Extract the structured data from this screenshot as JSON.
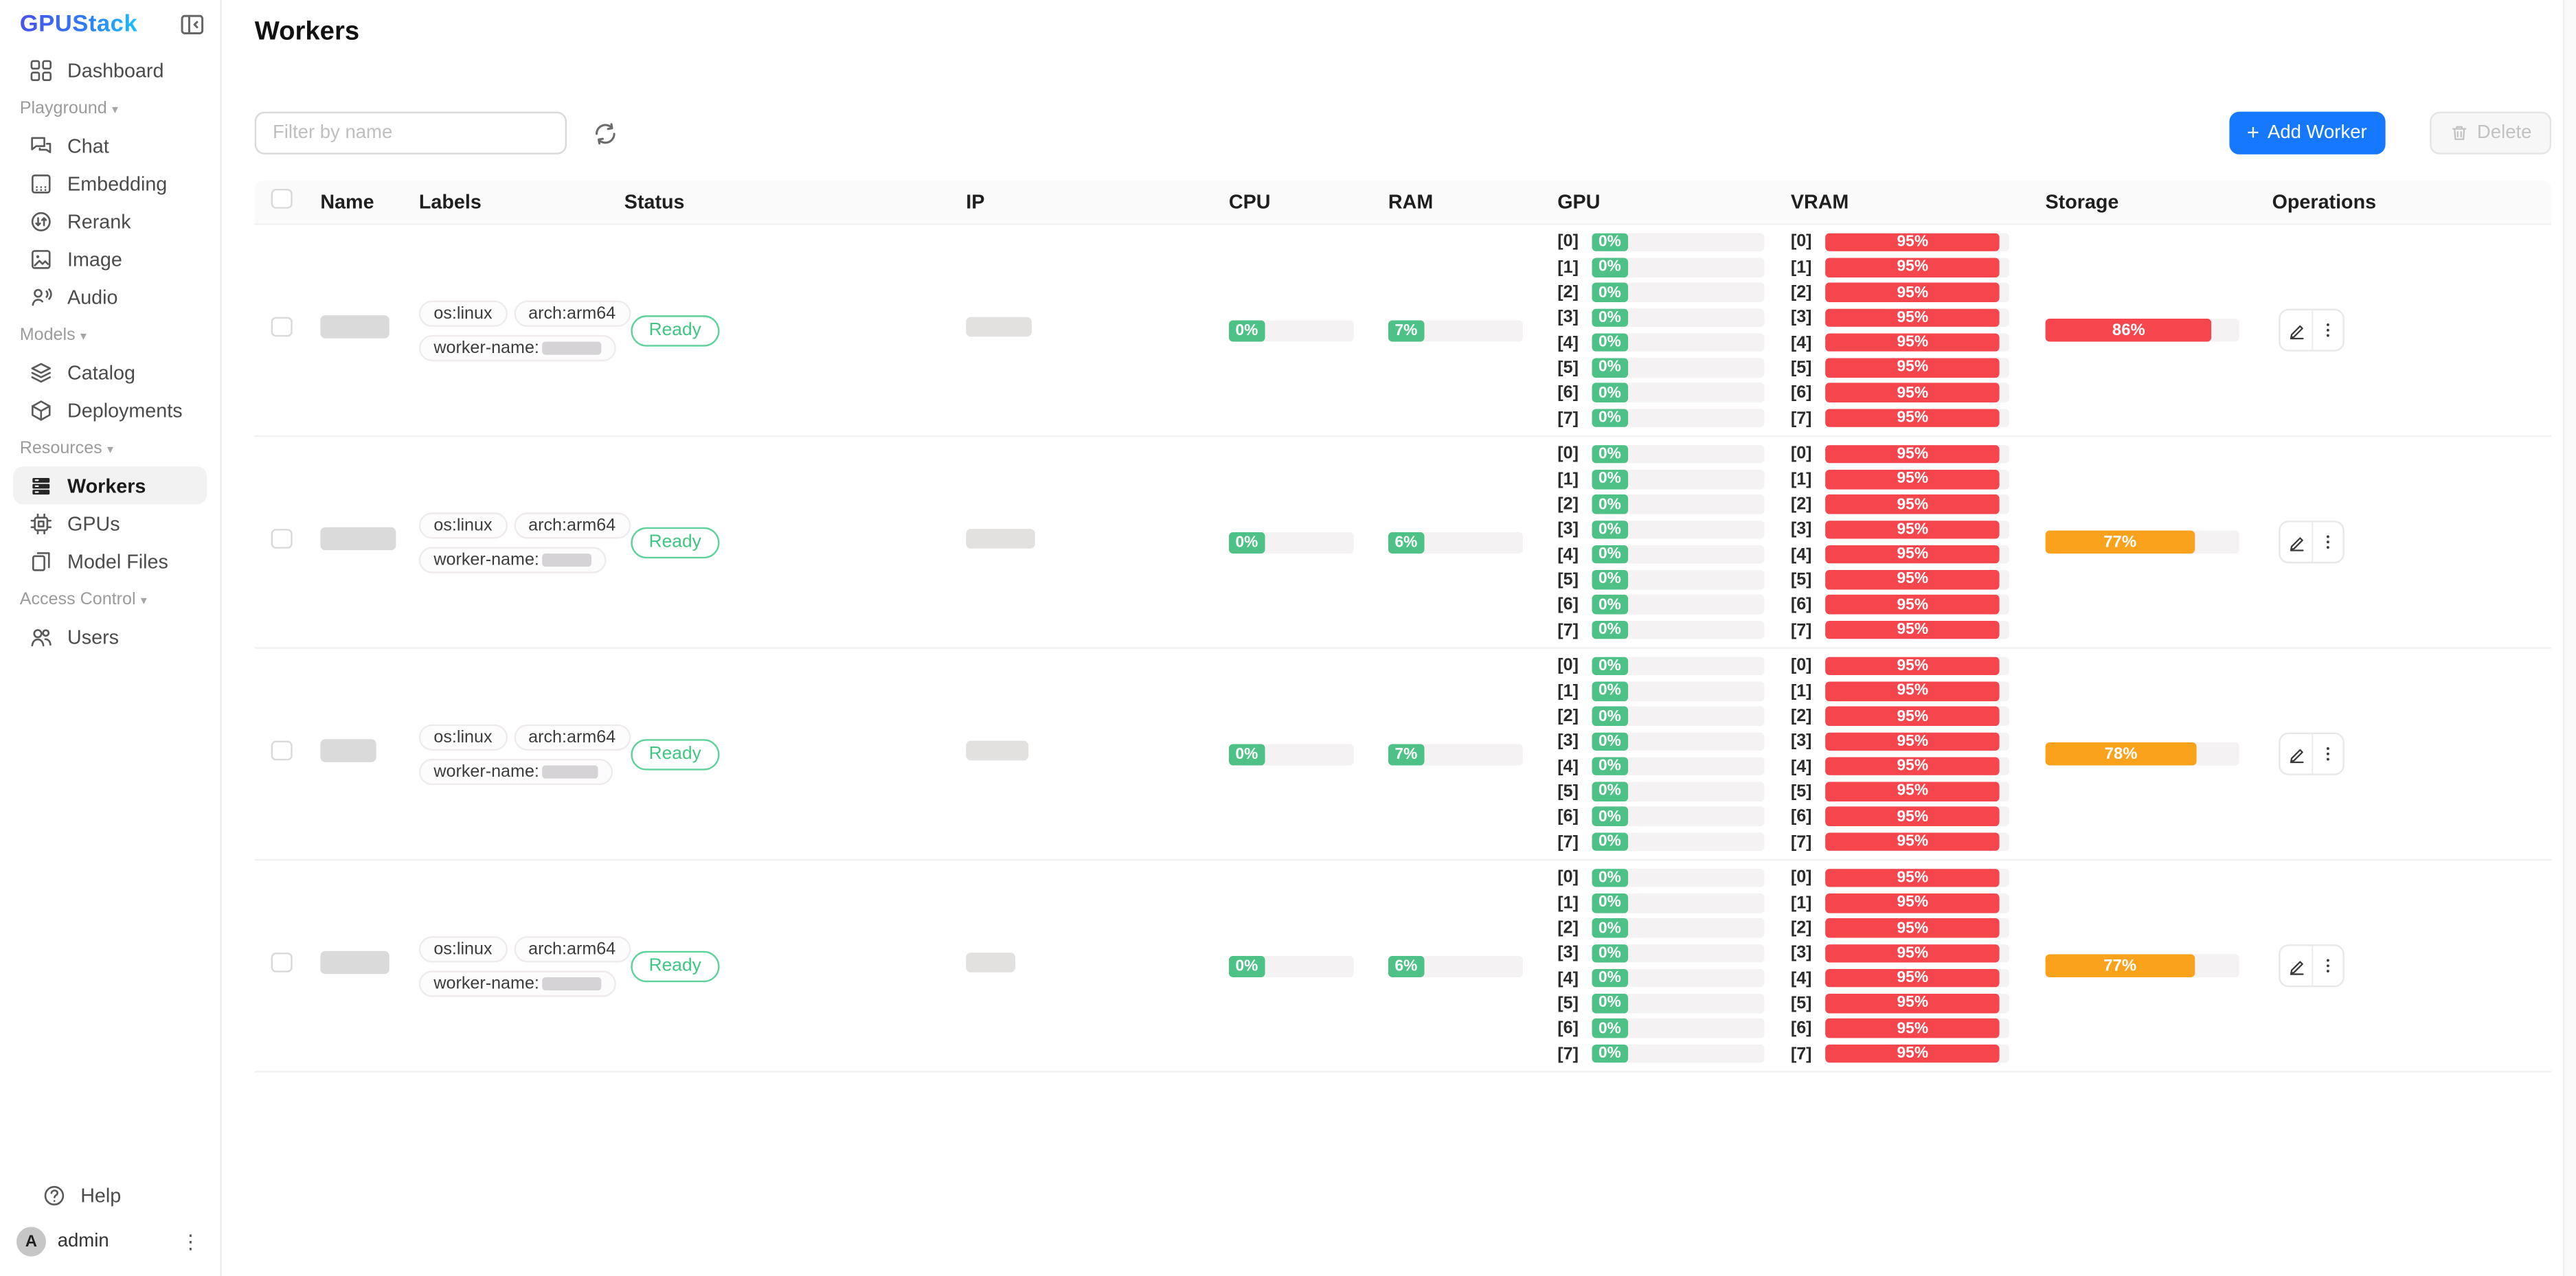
{
  "app": {
    "logo_text": "GPUStack"
  },
  "page": {
    "title": "Workers"
  },
  "sidebar": {
    "sections": [
      {
        "label": "",
        "items": [
          {
            "id": "dashboard",
            "label": "Dashboard",
            "icon": "dashboard-grid-icon",
            "active": false
          }
        ]
      },
      {
        "label": "Playground",
        "items": [
          {
            "id": "chat",
            "label": "Chat",
            "icon": "chat-icon",
            "active": false
          },
          {
            "id": "embedding",
            "label": "Embedding",
            "icon": "embedding-icon",
            "active": false
          },
          {
            "id": "rerank",
            "label": "Rerank",
            "icon": "rerank-icon",
            "active": false
          },
          {
            "id": "image",
            "label": "Image",
            "icon": "image-icon",
            "active": false
          },
          {
            "id": "audio",
            "label": "Audio",
            "icon": "audio-icon",
            "active": false
          }
        ]
      },
      {
        "label": "Models",
        "items": [
          {
            "id": "catalog",
            "label": "Catalog",
            "icon": "catalog-layers-icon",
            "active": false
          },
          {
            "id": "deployments",
            "label": "Deployments",
            "icon": "deployments-box-icon",
            "active": false
          }
        ]
      },
      {
        "label": "Resources",
        "items": [
          {
            "id": "workers",
            "label": "Workers",
            "icon": "workers-server-icon",
            "active": true
          },
          {
            "id": "gpus",
            "label": "GPUs",
            "icon": "gpu-chip-icon",
            "active": false
          },
          {
            "id": "model-files",
            "label": "Model Files",
            "icon": "model-files-icon",
            "active": false
          }
        ]
      },
      {
        "label": "Access Control",
        "items": [
          {
            "id": "users",
            "label": "Users",
            "icon": "users-icon",
            "active": false
          }
        ]
      }
    ],
    "footer": {
      "help_label": "Help",
      "username": "admin",
      "avatar_initial": "A"
    }
  },
  "toolbar": {
    "filter_placeholder": "Filter by name",
    "add_worker_label": "Add Worker",
    "delete_label": "Delete"
  },
  "table": {
    "columns": [
      "Name",
      "Labels",
      "Status",
      "IP",
      "CPU",
      "RAM",
      "GPU",
      "VRAM",
      "Storage",
      "Operations"
    ],
    "gpu_indices": [
      "[0]",
      "[1]",
      "[2]",
      "[3]",
      "[4]",
      "[5]",
      "[6]",
      "[7]"
    ],
    "rows": [
      {
        "labels": [
          "os:linux",
          "arch:arm64"
        ],
        "worker_label_prefix": "worker-name:",
        "status": "Ready",
        "cpu": "0%",
        "ram": "7%",
        "gpu_util": "0%",
        "vram_util": "95%",
        "storage": {
          "label": "86%",
          "pct": 86,
          "level": "critical"
        },
        "redact": {
          "name_w": 42,
          "ip_w": 40,
          "label_w": 36
        }
      },
      {
        "labels": [
          "os:linux",
          "arch:arm64"
        ],
        "worker_label_prefix": "worker-name:",
        "status": "Ready",
        "cpu": "0%",
        "ram": "6%",
        "gpu_util": "0%",
        "vram_util": "95%",
        "storage": {
          "label": "77%",
          "pct": 77,
          "level": "warning"
        },
        "redact": {
          "name_w": 46,
          "ip_w": 42,
          "label_w": 30
        }
      },
      {
        "labels": [
          "os:linux",
          "arch:arm64"
        ],
        "worker_label_prefix": "worker-name:",
        "status": "Ready",
        "cpu": "0%",
        "ram": "7%",
        "gpu_util": "0%",
        "vram_util": "95%",
        "storage": {
          "label": "78%",
          "pct": 78,
          "level": "warning"
        },
        "redact": {
          "name_w": 34,
          "ip_w": 38,
          "label_w": 34
        }
      },
      {
        "labels": [
          "os:linux",
          "arch:arm64"
        ],
        "worker_label_prefix": "worker-name:",
        "status": "Ready",
        "cpu": "0%",
        "ram": "6%",
        "gpu_util": "0%",
        "vram_util": "95%",
        "storage": {
          "label": "77%",
          "pct": 77,
          "level": "warning"
        },
        "redact": {
          "name_w": 42,
          "ip_w": 30,
          "label_w": 36
        }
      }
    ]
  },
  "colors": {
    "accent_blue": "#1677ff",
    "util_green": "#4ec186",
    "util_red": "#f5464e",
    "util_orange": "#faa21b",
    "ready_green": "#41c583"
  }
}
